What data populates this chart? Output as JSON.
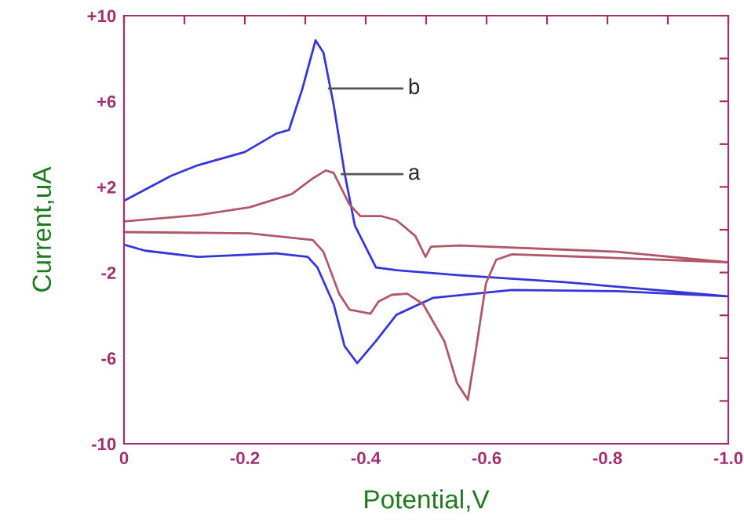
{
  "chart_data": {
    "type": "line",
    "xlabel": "Potential,V",
    "ylabel": "Current,uA",
    "xlim": [
      0,
      -1.0
    ],
    "xticks": [
      0,
      {
        "value": -0.1,
        "label": null
      },
      {
        "value": -0.2,
        "label": "-0.2"
      },
      {
        "value": -0.3,
        "label": null
      },
      {
        "value": -0.4,
        "label": "-0.4"
      },
      {
        "value": -0.5,
        "label": null
      },
      {
        "value": -0.6,
        "label": "-0.6"
      },
      {
        "value": -0.7,
        "label": null
      },
      {
        "value": -0.8,
        "label": "-0.8"
      },
      {
        "value": -0.9,
        "label": null
      },
      {
        "value": -1.0,
        "label": "-1.0"
      }
    ],
    "ylim": [
      -10,
      10
    ],
    "yticks": [
      -10,
      {
        "value": -8,
        "label": null
      },
      -6,
      {
        "value": -4,
        "label": null
      },
      -2,
      {
        "value": 0,
        "label": null
      },
      {
        "value": 2,
        "label": "+2"
      },
      {
        "value": 4,
        "label": null
      },
      {
        "value": 6,
        "label": "+6"
      },
      {
        "value": 8,
        "label": null
      },
      {
        "value": 10,
        "label": "+10"
      }
    ],
    "grid": false,
    "marker": "none",
    "line_style": "solid",
    "series": [
      {
        "color": "#3535d8",
        "x": [
          0,
          -0.078,
          -0.122,
          -0.2,
          -0.252,
          -0.273,
          -0.295,
          -0.317,
          -0.33,
          -0.347,
          -0.365,
          -0.382,
          -0.417,
          -0.451,
          -0.556,
          -0.729,
          -0.903,
          -0.998,
          -0.816,
          -0.642,
          -0.512,
          -0.451,
          -0.417,
          -0.386,
          -0.365,
          -0.347,
          -0.32,
          -0.304,
          -0.252,
          -0.122,
          -0.035,
          0
        ],
        "values": [
          1.35,
          2.52,
          3.01,
          3.63,
          4.49,
          4.66,
          6.57,
          8.85,
          8.28,
          5.83,
          2.65,
          0.2,
          -1.76,
          -1.89,
          -2.13,
          -2.45,
          -2.87,
          -3.11,
          -2.87,
          -2.82,
          -3.18,
          -3.97,
          -5.2,
          -6.23,
          -5.44,
          -3.48,
          -1.76,
          -1.27,
          -1.1,
          -1.27,
          -0.98,
          -0.7
        ]
      },
      {
        "color": "#b05868",
        "x": [
          0,
          -0.122,
          -0.208,
          -0.278,
          -0.3125,
          -0.334,
          -0.347,
          -0.373,
          -0.391,
          -0.425,
          -0.451,
          -0.482,
          -0.499,
          -0.508,
          -0.556,
          -0.816,
          -0.998,
          -0.816,
          -0.642,
          -0.616,
          -0.599,
          -0.582,
          -0.569,
          -0.551,
          -0.53,
          -0.495,
          -0.469,
          -0.443,
          -0.421,
          -0.408,
          -0.373,
          -0.356,
          -0.33,
          -0.3125,
          -0.208,
          0
        ],
        "values": [
          0.39,
          0.68,
          1.05,
          1.67,
          2.4,
          2.77,
          2.65,
          1.18,
          0.64,
          0.64,
          0.44,
          -0.29,
          -1.27,
          -0.79,
          -0.74,
          -1.03,
          -1.52,
          -1.32,
          -1.15,
          -1.4,
          -2.5,
          -5.68,
          -7.94,
          -7.16,
          -5.2,
          -3.48,
          -2.99,
          -3.04,
          -3.36,
          -3.92,
          -3.73,
          -2.99,
          -1.03,
          -0.48,
          -0.17,
          -0.11
        ]
      }
    ],
    "annotations": [
      {
        "text": "b",
        "x": -0.339,
        "y": 6.6
      },
      {
        "text": "a",
        "x": -0.36,
        "y": 2.6
      }
    ]
  }
}
